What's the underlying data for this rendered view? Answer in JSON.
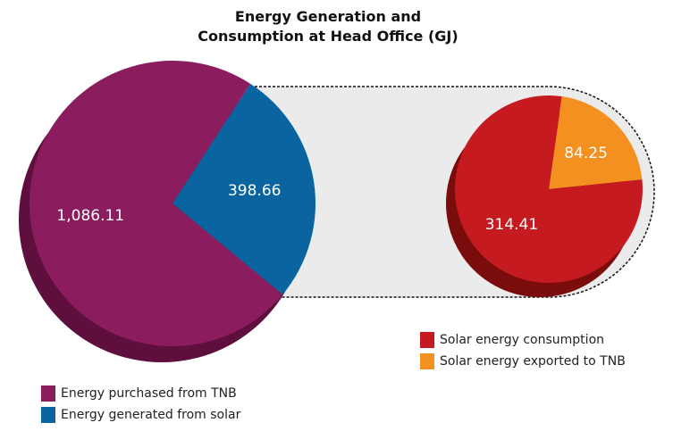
{
  "chart_data": [
    {
      "type": "pie",
      "title": "Energy Generation and Consumption at Head Office (GJ)",
      "categories": [
        "Energy purchased from TNB",
        "Energy generated from solar"
      ],
      "values": [
        1086.11,
        398.66
      ],
      "value_labels": [
        "1,086.11",
        "398.66"
      ],
      "colors": [
        "#8b1d5e",
        "#0a64a0"
      ]
    },
    {
      "type": "pie",
      "categories": [
        "Solar energy consumption",
        "Solar energy exported to TNB"
      ],
      "values": [
        314.41,
        84.25
      ],
      "value_labels": [
        "314.41",
        "84.25"
      ],
      "colors": [
        "#c41a20",
        "#f39020"
      ]
    }
  ]
}
